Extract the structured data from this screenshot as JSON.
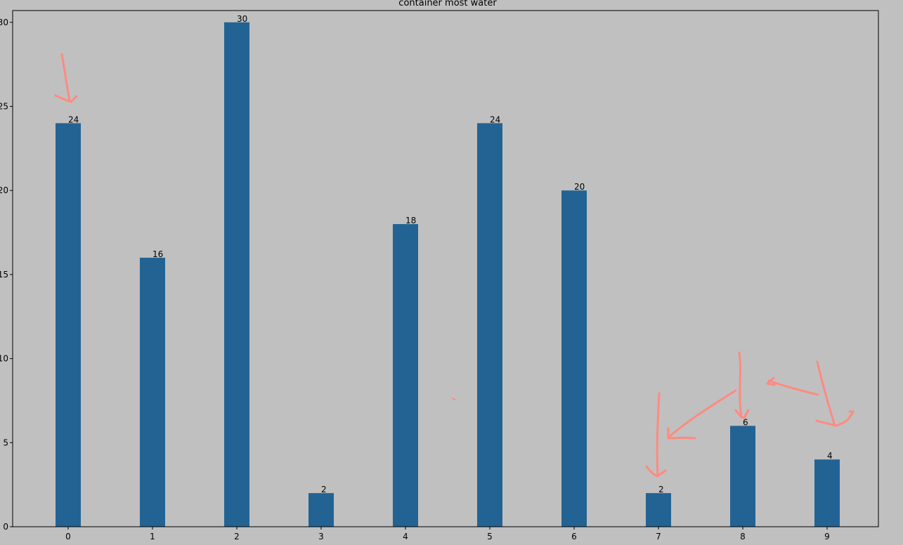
{
  "chart_data": {
    "type": "bar",
    "title": "container most water",
    "xlabel": "",
    "ylabel": "",
    "categories": [
      "0",
      "1",
      "2",
      "3",
      "4",
      "5",
      "6",
      "7",
      "8",
      "9"
    ],
    "values": [
      24,
      16,
      30,
      2,
      18,
      24,
      20,
      2,
      6,
      4
    ],
    "data_labels": [
      "24",
      "16",
      "30",
      "2",
      "18",
      "24",
      "20",
      "2",
      "6",
      "4"
    ],
    "ylim": [
      0,
      30.7
    ],
    "yticks": [
      0,
      5,
      10,
      15,
      20,
      25,
      30
    ],
    "ytick_labels": [
      "0",
      "5",
      "10",
      "15",
      "20",
      "25",
      "30"
    ],
    "grid": false,
    "colors": {
      "background": "#c0c0c0",
      "bar": "#226394",
      "annotation": "#ff8a80"
    },
    "annotations": {
      "type": "hand-drawn arrows",
      "color": "#ff8a80",
      "targets": [
        "0",
        "7",
        "8",
        "9"
      ]
    }
  }
}
